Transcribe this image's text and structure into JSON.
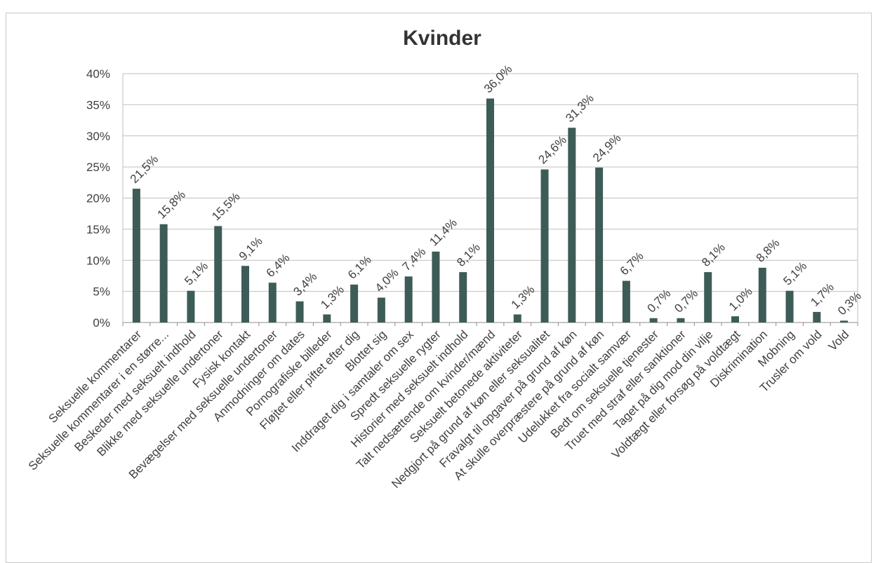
{
  "chart_data": {
    "type": "bar",
    "title": "Kvinder",
    "xlabel": "",
    "ylabel": "",
    "ylim": [
      0,
      0.4
    ],
    "yticks": [
      "0%",
      "5%",
      "10%",
      "15%",
      "20%",
      "25%",
      "30%",
      "35%",
      "40%"
    ],
    "grid": true,
    "bar_color": "#3d5c57",
    "categories": [
      "Seksuelle kommentarer",
      "Seksuelle kommentarer i en større...",
      "Beskeder med seksuelt indhold",
      "Blikke med seksuelle undertoner",
      "Fysisk kontakt",
      "Bevægelser med seksuelle undertoner",
      "Anmodninger om dates",
      "Pornografiske billeder",
      "Fløjtet eller piftet efter dig",
      "Blottet sig",
      "Inddraget dig i samtaler om sex",
      "Spredt seksuelle rygter",
      "Historier med seksuelt indhold",
      "Talt nedsættende om kvinder/mænd",
      "Seksuelt betonede aktiviteter",
      "Nedgjort på grund af køn eller seksualitet",
      "Fravalgt til opgaver på grund af køn",
      "At skulle overpræstere på grund af køn",
      "Udelukket fra socialt samvær",
      "Bedt om seksuelle tjenester",
      "Truet med straf eller sanktioner",
      "Taget på dig mod din vilje",
      "Voldtægt eller forsøg på voldtægt",
      "Diskrimination",
      "Mobning",
      "Trusler om vold",
      "Vold"
    ],
    "values": [
      0.215,
      0.158,
      0.051,
      0.155,
      0.091,
      0.064,
      0.034,
      0.013,
      0.061,
      0.04,
      0.074,
      0.114,
      0.081,
      0.36,
      0.013,
      0.246,
      0.313,
      0.249,
      0.067,
      0.007,
      0.007,
      0.081,
      0.01,
      0.088,
      0.051,
      0.017,
      0.003
    ],
    "data_labels": [
      "21,5%",
      "15,8%",
      "5,1%",
      "15,5%",
      "9,1%",
      "6,4%",
      "3,4%",
      "1,3%",
      "6,1%",
      "4,0%",
      "7,4%",
      "11,4%",
      "8,1%",
      "36,0%",
      "1,3%",
      "24,6%",
      "31,3%",
      "24,9%",
      "6,7%",
      "0,7%",
      "0,7%",
      "8,1%",
      "1,0%",
      "8,8%",
      "5,1%",
      "1,7%",
      "0,3%"
    ]
  }
}
